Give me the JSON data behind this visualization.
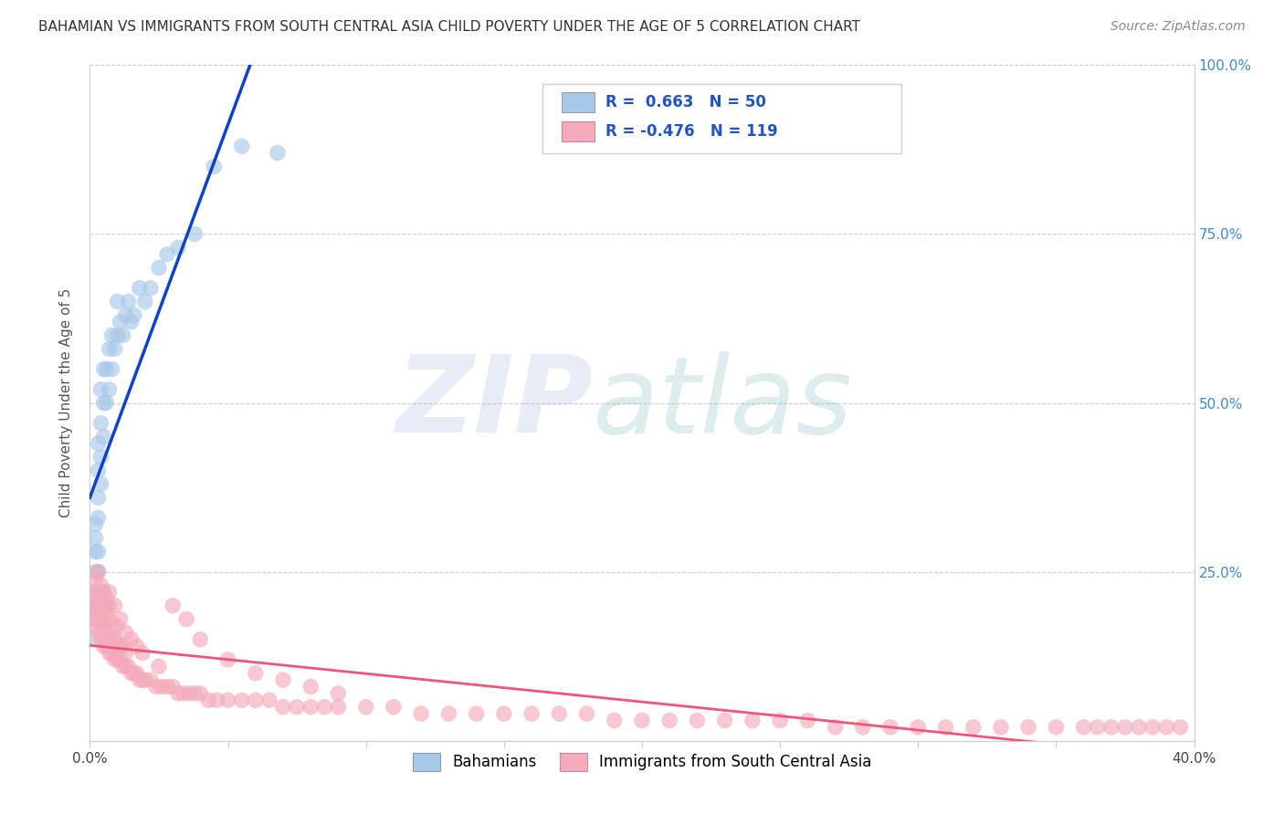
{
  "title": "BAHAMIAN VS IMMIGRANTS FROM SOUTH CENTRAL ASIA CHILD POVERTY UNDER THE AGE OF 5 CORRELATION CHART",
  "source": "Source: ZipAtlas.com",
  "ylabel": "Child Poverty Under the Age of 5",
  "blue_R": 0.663,
  "blue_N": 50,
  "pink_R": -0.476,
  "pink_N": 119,
  "blue_color": "#A8C8E8",
  "pink_color": "#F4AABB",
  "blue_line_color": "#1144BB",
  "pink_line_color": "#EE5577",
  "grid_color": "#CCCCDD",
  "xlim": [
    0.0,
    0.4
  ],
  "ylim": [
    0.0,
    1.0
  ],
  "blue_scatter_x": [
    0.001,
    0.001,
    0.001,
    0.002,
    0.002,
    0.002,
    0.002,
    0.002,
    0.003,
    0.003,
    0.003,
    0.003,
    0.003,
    0.004,
    0.004,
    0.004,
    0.004,
    0.005,
    0.005,
    0.005,
    0.006,
    0.006,
    0.007,
    0.007,
    0.008,
    0.008,
    0.009,
    0.01,
    0.01,
    0.011,
    0.012,
    0.013,
    0.014,
    0.015,
    0.016,
    0.018,
    0.02,
    0.022,
    0.025,
    0.028,
    0.032,
    0.038,
    0.045,
    0.055,
    0.068,
    0.002,
    0.003,
    0.004,
    0.005,
    0.006
  ],
  "blue_scatter_y": [
    0.15,
    0.18,
    0.2,
    0.22,
    0.25,
    0.28,
    0.3,
    0.32,
    0.28,
    0.33,
    0.36,
    0.4,
    0.44,
    0.38,
    0.42,
    0.47,
    0.52,
    0.45,
    0.5,
    0.55,
    0.5,
    0.55,
    0.52,
    0.58,
    0.55,
    0.6,
    0.58,
    0.6,
    0.65,
    0.62,
    0.6,
    0.63,
    0.65,
    0.62,
    0.63,
    0.67,
    0.65,
    0.67,
    0.7,
    0.72,
    0.73,
    0.75,
    0.85,
    0.88,
    0.87,
    0.2,
    0.25,
    0.18,
    0.22,
    0.2
  ],
  "pink_scatter_x": [
    0.001,
    0.001,
    0.002,
    0.002,
    0.002,
    0.003,
    0.003,
    0.003,
    0.003,
    0.004,
    0.004,
    0.004,
    0.004,
    0.005,
    0.005,
    0.005,
    0.005,
    0.006,
    0.006,
    0.006,
    0.006,
    0.007,
    0.007,
    0.007,
    0.007,
    0.008,
    0.008,
    0.008,
    0.009,
    0.009,
    0.01,
    0.01,
    0.01,
    0.011,
    0.011,
    0.012,
    0.012,
    0.013,
    0.013,
    0.014,
    0.015,
    0.016,
    0.017,
    0.018,
    0.019,
    0.02,
    0.022,
    0.024,
    0.026,
    0.028,
    0.03,
    0.032,
    0.034,
    0.036,
    0.038,
    0.04,
    0.043,
    0.046,
    0.05,
    0.055,
    0.06,
    0.065,
    0.07,
    0.075,
    0.08,
    0.085,
    0.09,
    0.1,
    0.11,
    0.12,
    0.13,
    0.14,
    0.15,
    0.16,
    0.17,
    0.18,
    0.19,
    0.2,
    0.21,
    0.22,
    0.23,
    0.24,
    0.25,
    0.26,
    0.27,
    0.28,
    0.29,
    0.3,
    0.31,
    0.32,
    0.33,
    0.34,
    0.35,
    0.36,
    0.365,
    0.37,
    0.375,
    0.38,
    0.385,
    0.39,
    0.395,
    0.003,
    0.005,
    0.007,
    0.009,
    0.011,
    0.013,
    0.015,
    0.017,
    0.019,
    0.025,
    0.03,
    0.035,
    0.04,
    0.05,
    0.06,
    0.07,
    0.08,
    0.09
  ],
  "pink_scatter_y": [
    0.18,
    0.22,
    0.17,
    0.2,
    0.24,
    0.16,
    0.19,
    0.22,
    0.25,
    0.15,
    0.18,
    0.21,
    0.23,
    0.14,
    0.17,
    0.2,
    0.22,
    0.14,
    0.16,
    0.19,
    0.21,
    0.13,
    0.15,
    0.18,
    0.2,
    0.13,
    0.15,
    0.17,
    0.12,
    0.15,
    0.12,
    0.14,
    0.17,
    0.12,
    0.14,
    0.11,
    0.14,
    0.11,
    0.13,
    0.11,
    0.1,
    0.1,
    0.1,
    0.09,
    0.09,
    0.09,
    0.09,
    0.08,
    0.08,
    0.08,
    0.08,
    0.07,
    0.07,
    0.07,
    0.07,
    0.07,
    0.06,
    0.06,
    0.06,
    0.06,
    0.06,
    0.06,
    0.05,
    0.05,
    0.05,
    0.05,
    0.05,
    0.05,
    0.05,
    0.04,
    0.04,
    0.04,
    0.04,
    0.04,
    0.04,
    0.04,
    0.03,
    0.03,
    0.03,
    0.03,
    0.03,
    0.03,
    0.03,
    0.03,
    0.02,
    0.02,
    0.02,
    0.02,
    0.02,
    0.02,
    0.02,
    0.02,
    0.02,
    0.02,
    0.02,
    0.02,
    0.02,
    0.02,
    0.02,
    0.02,
    0.02,
    0.2,
    0.18,
    0.22,
    0.2,
    0.18,
    0.16,
    0.15,
    0.14,
    0.13,
    0.11,
    0.2,
    0.18,
    0.15,
    0.12,
    0.1,
    0.09,
    0.08,
    0.07
  ],
  "blue_line_start_x": 0.0,
  "blue_line_end_solid_x": 0.068,
  "blue_line_end_dash_x": 0.3,
  "pink_line_start_y": 0.175,
  "pink_line_end_y": 0.04
}
